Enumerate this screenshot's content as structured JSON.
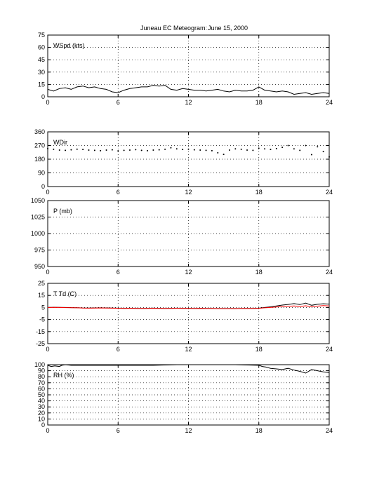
{
  "chart_data": {
    "title": "Juneau EC Meteogram:",
    "date": "June 15, 2000",
    "type": "line",
    "x_ticks": [
      0,
      6,
      12,
      18,
      24
    ],
    "xlim": [
      0,
      24
    ],
    "grid": true,
    "panels": [
      {
        "id": "wspd",
        "label": "WSpd (kts)",
        "type": "line",
        "ylim": [
          0,
          75
        ],
        "y_ticks": [
          0,
          15,
          30,
          45,
          60,
          75
        ],
        "series": [
          {
            "color": "#000000",
            "x": [
              0,
              0.5,
              1,
              1.5,
              2,
              2.5,
              3,
              3.5,
              4,
              4.5,
              5,
              5.5,
              6,
              6.5,
              7,
              7.5,
              8,
              8.5,
              9,
              9.5,
              10,
              10.5,
              11,
              11.5,
              12,
              12.5,
              13,
              13.5,
              14,
              14.5,
              15,
              15.5,
              16,
              16.5,
              17,
              17.5,
              18,
              18.5,
              19,
              19.5,
              20,
              20.5,
              21,
              21.5,
              22,
              22.5,
              23,
              23.5,
              24
            ],
            "values": [
              9,
              7,
              10,
              11,
              9,
              12,
              13,
              11,
              12,
              10,
              9,
              6,
              5,
              8,
              10,
              11,
              12,
              12,
              14,
              13,
              14,
              9,
              8,
              10,
              9,
              8,
              8,
              7,
              8,
              9,
              7,
              6,
              8,
              7,
              7,
              8,
              12,
              8,
              7,
              6,
              7,
              6,
              3,
              4,
              5,
              3,
              4,
              5,
              4
            ]
          }
        ]
      },
      {
        "id": "wdir",
        "label": "WDir",
        "type": "scatter",
        "ylim": [
          0,
          360
        ],
        "y_ticks": [
          0,
          90,
          180,
          270,
          360
        ],
        "series": [
          {
            "color": "#000000",
            "x": [
              0,
              0.5,
              1,
              1.5,
              2,
              2.5,
              3,
              3.5,
              4,
              4.5,
              5,
              5.5,
              6,
              6.5,
              7,
              7.5,
              8,
              8.5,
              9,
              9.5,
              10,
              10.5,
              11,
              11.5,
              12,
              12.5,
              13,
              13.5,
              14,
              14.5,
              15,
              15.5,
              16,
              16.5,
              17,
              17.5,
              18,
              18.5,
              19,
              19.5,
              20,
              20.5,
              21,
              21.5,
              22,
              22.5,
              23,
              23.5,
              24
            ],
            "values": [
              250,
              245,
              240,
              238,
              242,
              246,
              244,
              240,
              238,
              236,
              240,
              242,
              235,
              238,
              240,
              243,
              238,
              236,
              240,
              242,
              245,
              255,
              248,
              244,
              246,
              242,
              240,
              238,
              236,
              222,
              212,
              240,
              248,
              245,
              240,
              238,
              252,
              248,
              244,
              250,
              258,
              270,
              248,
              238,
              270,
              210,
              262,
              230,
              195
            ]
          }
        ]
      },
      {
        "id": "pres",
        "label": "P (mb)",
        "type": "line",
        "ylim": [
          950,
          1050
        ],
        "y_ticks": [
          950,
          975,
          1000,
          1025,
          1050
        ],
        "series": []
      },
      {
        "id": "temp",
        "label": "T Td (C)",
        "type": "line",
        "ylim": [
          -25,
          25
        ],
        "y_ticks": [
          -25,
          -15,
          -5,
          5,
          15,
          25
        ],
        "series": [
          {
            "name": "T",
            "color": "#000000",
            "x": [
              0,
              0.5,
              1,
              1.5,
              2,
              2.5,
              3,
              3.5,
              4,
              4.5,
              5,
              5.5,
              6,
              6.5,
              7,
              7.5,
              8,
              8.5,
              9,
              9.5,
              10,
              10.5,
              11,
              11.5,
              12,
              12.5,
              13,
              13.5,
              14,
              14.5,
              15,
              15.5,
              16,
              16.5,
              17,
              17.5,
              18,
              18.5,
              19,
              19.5,
              20,
              20.5,
              21,
              21.5,
              22,
              22.5,
              23,
              23.5,
              24
            ],
            "values": [
              5,
              5.2,
              5.1,
              5,
              4.9,
              4.8,
              4.6,
              4.5,
              4.6,
              4.7,
              4.6,
              4.5,
              4.4,
              4.3,
              4.4,
              4.3,
              4.2,
              4.3,
              4.4,
              4.3,
              4.2,
              4.3,
              4.4,
              4.3,
              4.3,
              4.2,
              4.3,
              4.2,
              4.2,
              4.1,
              4.1,
              4.1,
              4.1,
              4.2,
              4.2,
              4.2,
              4.4,
              5,
              5.5,
              6.3,
              7,
              7.5,
              8.2,
              7.4,
              8.6,
              6.8,
              7.6,
              8.1,
              7.8
            ]
          },
          {
            "name": "Td",
            "color": "#ff0000",
            "x": [
              0,
              0.5,
              1,
              1.5,
              2,
              2.5,
              3,
              3.5,
              4,
              4.5,
              5,
              5.5,
              6,
              6.5,
              7,
              7.5,
              8,
              8.5,
              9,
              9.5,
              10,
              10.5,
              11,
              11.5,
              12,
              12.5,
              13,
              13.5,
              14,
              14.5,
              15,
              15.5,
              16,
              16.5,
              17,
              17.5,
              18,
              18.5,
              19,
              19.5,
              20,
              20.5,
              21,
              21.5,
              22,
              22.5,
              23,
              23.5,
              24
            ],
            "values": [
              4.9,
              5.1,
              5,
              4.9,
              4.8,
              4.7,
              4.5,
              4.4,
              4.5,
              4.6,
              4.5,
              4.4,
              4.3,
              4.2,
              4.3,
              4.2,
              4.1,
              4.2,
              4.3,
              4.2,
              4.1,
              4.2,
              4.3,
              4.2,
              4.2,
              4.1,
              4.2,
              4.1,
              4.1,
              4,
              4,
              4,
              4,
              4.1,
              4.1,
              4.1,
              4.3,
              4.7,
              5,
              5.4,
              5.8,
              6,
              6.2,
              5.8,
              6.4,
              5.5,
              6.1,
              6.5,
              6.3
            ]
          }
        ]
      },
      {
        "id": "rh",
        "label": "RH (%)",
        "type": "line",
        "ylim": [
          0,
          100
        ],
        "y_ticks": [
          0,
          10,
          20,
          30,
          40,
          50,
          60,
          70,
          80,
          90,
          100
        ],
        "series": [
          {
            "color": "#000000",
            "x": [
              0,
              0.3,
              0.6,
              1,
              1.2,
              1.5,
              2,
              4,
              6,
              9,
              11,
              16,
              18,
              18.3,
              18.6,
              19,
              19.5,
              20,
              20.5,
              21,
              21.5,
              22,
              22.5,
              23,
              23.5,
              24
            ],
            "values": [
              99,
              97,
              98,
              97,
              99,
              100,
              99,
              99,
              99,
              99,
              100,
              100,
              99,
              97,
              96,
              94,
              93,
              92,
              94,
              91,
              89,
              86,
              92,
              90,
              88,
              87
            ]
          }
        ]
      }
    ]
  }
}
